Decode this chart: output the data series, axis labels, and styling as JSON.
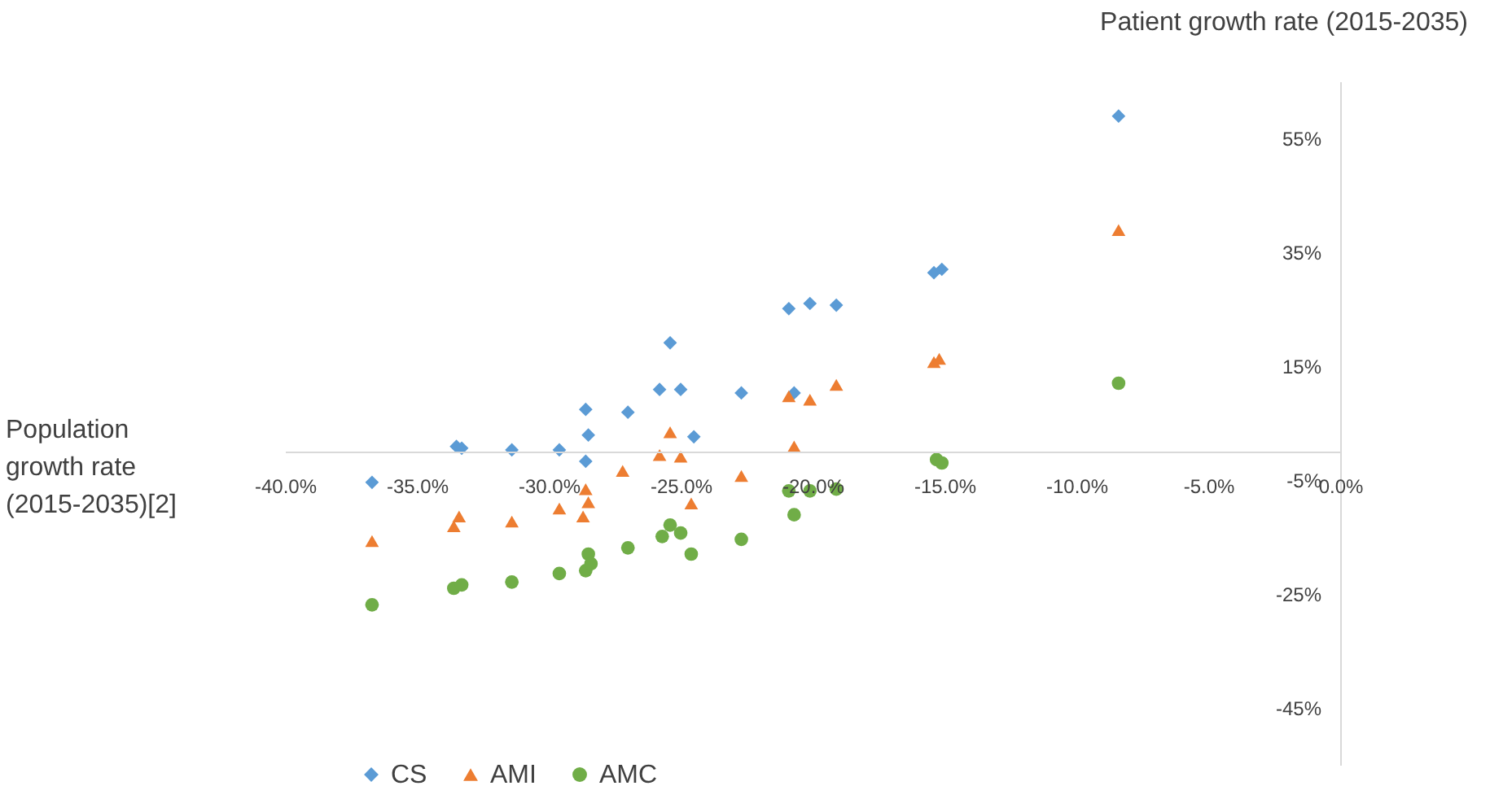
{
  "chart_data": {
    "type": "scatter",
    "xlabel": "Population growth rate (2015-2035)[2]",
    "ylabel": "Patient growth rate (2015-2035)",
    "xlim": [
      -40,
      0
    ],
    "ylim": [
      -55,
      65
    ],
    "xticks": [
      {
        "value": -40,
        "label": "-40.0%"
      },
      {
        "value": -35,
        "label": "-35.0%"
      },
      {
        "value": -30,
        "label": "-30.0%"
      },
      {
        "value": -25,
        "label": "-25.0%"
      },
      {
        "value": -20,
        "label": "-20.0%"
      },
      {
        "value": -15,
        "label": "-15.0%"
      },
      {
        "value": -10,
        "label": "-10.0%"
      },
      {
        "value": -5,
        "label": "-5.0%"
      },
      {
        "value": 0,
        "label": "0.0%"
      }
    ],
    "yticks": [
      {
        "value": 55,
        "label": "55%"
      },
      {
        "value": 35,
        "label": "35%"
      },
      {
        "value": 15,
        "label": "15%"
      },
      {
        "value": -5,
        "label": "-5%"
      },
      {
        "value": -25,
        "label": "-25%"
      },
      {
        "value": -45,
        "label": "-45%"
      }
    ],
    "grid": false,
    "legend": "bottom",
    "series": [
      {
        "name": "CS",
        "color": "#5b9bd5",
        "marker": "diamond",
        "x": [
          -36.7,
          -33.5,
          -33.3,
          -31.4,
          -29.6,
          -28.6,
          -28.6,
          -28.5,
          -27.0,
          -25.8,
          -25.4,
          -25.0,
          -24.5,
          -22.7,
          -20.9,
          -20.7,
          -20.1,
          -19.1,
          -15.4,
          -15.1,
          -8.4
        ],
        "values": [
          -5.4,
          0.9,
          0.6,
          0.3,
          0.3,
          7.4,
          -1.7,
          2.9,
          6.9,
          10.9,
          19.1,
          10.9,
          2.6,
          10.3,
          25.1,
          10.3,
          26.0,
          25.7,
          31.4,
          32.0,
          58.9
        ]
      },
      {
        "name": "AMI",
        "color": "#ed7d31",
        "marker": "triangle",
        "x": [
          -36.7,
          -33.6,
          -33.4,
          -31.4,
          -29.6,
          -28.6,
          -28.5,
          -28.7,
          -27.2,
          -25.8,
          -25.4,
          -25.0,
          -24.6,
          -22.7,
          -20.9,
          -20.7,
          -20.1,
          -19.1,
          -15.4,
          -15.2,
          -8.4
        ],
        "values": [
          -15.7,
          -13.1,
          -11.4,
          -12.3,
          -10.0,
          -6.6,
          -8.9,
          -11.4,
          -3.4,
          -0.6,
          3.4,
          -0.9,
          -9.1,
          -4.3,
          9.7,
          0.9,
          9.1,
          11.7,
          15.7,
          16.3,
          38.9
        ]
      },
      {
        "name": "AMC",
        "color": "#70ad47",
        "marker": "circle",
        "x": [
          -36.7,
          -33.6,
          -33.3,
          -31.4,
          -29.6,
          -28.6,
          -28.5,
          -28.4,
          -27.0,
          -25.7,
          -25.4,
          -25.0,
          -24.6,
          -22.7,
          -20.7,
          -20.9,
          -20.1,
          -19.1,
          -15.3,
          -15.1,
          -8.4
        ],
        "values": [
          -26.9,
          -24.0,
          -23.4,
          -22.9,
          -21.4,
          -20.9,
          -18.0,
          -19.7,
          -16.9,
          -14.9,
          -12.9,
          -14.3,
          -18.0,
          -15.4,
          -11.1,
          -6.9,
          -6.9,
          -6.6,
          -1.4,
          -2.0,
          12.0
        ]
      }
    ]
  }
}
